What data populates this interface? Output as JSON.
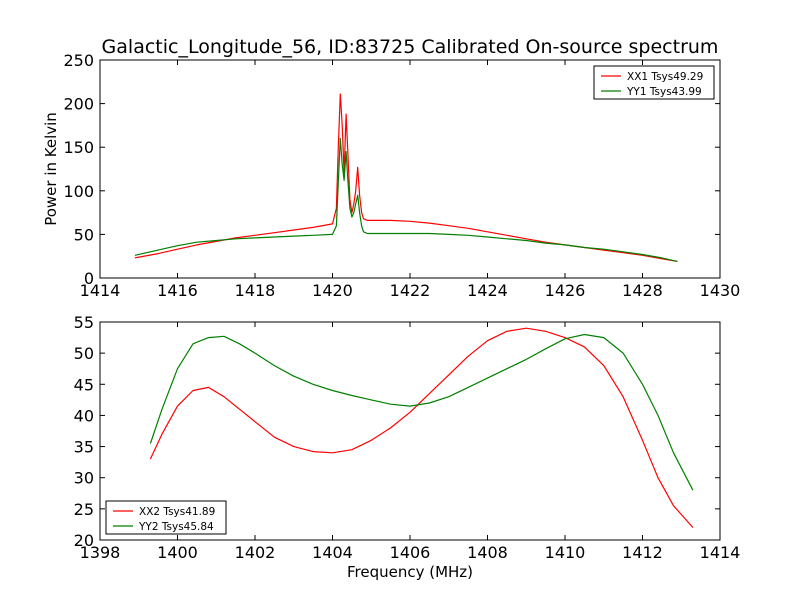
{
  "chart_data": [
    {
      "type": "line",
      "title": "Galactic_Longitude_56, ID:83725 Calibrated On-source spectrum",
      "xlabel": "",
      "ylabel": "Power in Kelvin",
      "xlim": [
        1414,
        1430
      ],
      "ylim": [
        0,
        250
      ],
      "xticks": [
        1414,
        1416,
        1418,
        1420,
        1422,
        1424,
        1426,
        1428,
        1430
      ],
      "yticks": [
        0,
        50,
        100,
        150,
        200,
        250
      ],
      "grid": false,
      "legend_position": "top-right",
      "series": [
        {
          "name": "XX1 Tsys49.29",
          "color": "#ff0000",
          "x": [
            1414.9,
            1415.5,
            1416.0,
            1416.5,
            1417.0,
            1417.5,
            1418.0,
            1418.5,
            1419.0,
            1419.5,
            1420.0,
            1420.1,
            1420.15,
            1420.2,
            1420.25,
            1420.3,
            1420.35,
            1420.4,
            1420.45,
            1420.5,
            1420.55,
            1420.6,
            1420.65,
            1420.7,
            1420.75,
            1420.8,
            1420.9,
            1421.0,
            1421.5,
            1422.0,
            1422.5,
            1423.0,
            1423.5,
            1424.0,
            1424.5,
            1425.0,
            1425.5,
            1426.0,
            1426.5,
            1427.0,
            1427.5,
            1428.0,
            1428.5,
            1428.9
          ],
          "values": [
            23,
            28,
            33,
            38,
            42,
            46,
            49,
            52,
            55,
            58,
            62,
            80,
            150,
            211,
            175,
            120,
            188,
            140,
            90,
            75,
            85,
            100,
            127,
            95,
            75,
            68,
            66,
            66,
            66,
            65,
            63,
            60,
            57,
            53,
            49,
            45,
            41,
            38,
            35,
            32,
            29,
            26,
            22,
            19
          ]
        },
        {
          "name": "YY1 Tsys43.99",
          "color": "#008000",
          "x": [
            1414.9,
            1415.5,
            1416.0,
            1416.5,
            1417.0,
            1417.5,
            1418.0,
            1418.5,
            1419.0,
            1419.5,
            1420.0,
            1420.1,
            1420.15,
            1420.2,
            1420.25,
            1420.3,
            1420.35,
            1420.4,
            1420.45,
            1420.5,
            1420.55,
            1420.6,
            1420.65,
            1420.7,
            1420.75,
            1420.8,
            1420.9,
            1421.0,
            1421.5,
            1422.0,
            1422.5,
            1423.0,
            1423.5,
            1424.0,
            1424.5,
            1425.0,
            1425.5,
            1426.0,
            1426.5,
            1427.0,
            1427.5,
            1428.0,
            1428.5,
            1428.9
          ],
          "values": [
            26,
            32,
            37,
            41,
            43,
            45,
            46,
            47,
            48,
            49,
            50,
            60,
            110,
            160,
            130,
            112,
            145,
            110,
            80,
            70,
            75,
            85,
            95,
            75,
            60,
            53,
            51,
            51,
            51,
            51,
            51,
            50,
            49,
            47,
            45,
            43,
            40,
            38,
            35,
            33,
            30,
            27,
            23,
            19
          ]
        }
      ]
    },
    {
      "type": "line",
      "title": "",
      "xlabel": "Frequency (MHz)",
      "ylabel": "",
      "xlim": [
        1398,
        1414
      ],
      "ylim": [
        20,
        55
      ],
      "xticks": [
        1398,
        1400,
        1402,
        1404,
        1406,
        1408,
        1410,
        1412,
        1414
      ],
      "yticks": [
        20,
        25,
        30,
        35,
        40,
        45,
        50,
        55
      ],
      "grid": false,
      "legend_position": "lower-left",
      "series": [
        {
          "name": "XX2 Tsys41.89",
          "color": "#ff0000",
          "x": [
            1399.3,
            1399.6,
            1400.0,
            1400.4,
            1400.8,
            1401.2,
            1401.6,
            1402.0,
            1402.5,
            1403.0,
            1403.5,
            1404.0,
            1404.5,
            1405.0,
            1405.5,
            1406.0,
            1406.5,
            1407.0,
            1407.5,
            1408.0,
            1408.5,
            1409.0,
            1409.5,
            1410.0,
            1410.5,
            1411.0,
            1411.5,
            1412.0,
            1412.4,
            1412.8,
            1413.3
          ],
          "values": [
            33,
            37,
            41.5,
            44,
            44.5,
            43,
            41,
            39,
            36.5,
            35,
            34.2,
            34,
            34.5,
            36,
            38,
            40.5,
            43.5,
            46.5,
            49.5,
            52,
            53.5,
            54,
            53.5,
            52.5,
            51,
            48,
            43,
            36,
            30,
            25.5,
            22
          ]
        },
        {
          "name": "YY2 Tsys45.84",
          "color": "#008000",
          "x": [
            1399.3,
            1399.6,
            1400.0,
            1400.4,
            1400.8,
            1401.2,
            1401.6,
            1402.0,
            1402.5,
            1403.0,
            1403.5,
            1404.0,
            1404.5,
            1405.0,
            1405.5,
            1406.0,
            1406.5,
            1407.0,
            1407.5,
            1408.0,
            1408.5,
            1409.0,
            1409.5,
            1410.0,
            1410.5,
            1411.0,
            1411.5,
            1412.0,
            1412.4,
            1412.8,
            1413.3
          ],
          "values": [
            35.5,
            41,
            47.5,
            51.5,
            52.5,
            52.7,
            51.5,
            50,
            48,
            46.3,
            45,
            44,
            43.2,
            42.5,
            41.8,
            41.5,
            42,
            43,
            44.5,
            46,
            47.5,
            49,
            50.7,
            52.3,
            53,
            52.5,
            50,
            45,
            40,
            34,
            28
          ]
        }
      ]
    }
  ]
}
